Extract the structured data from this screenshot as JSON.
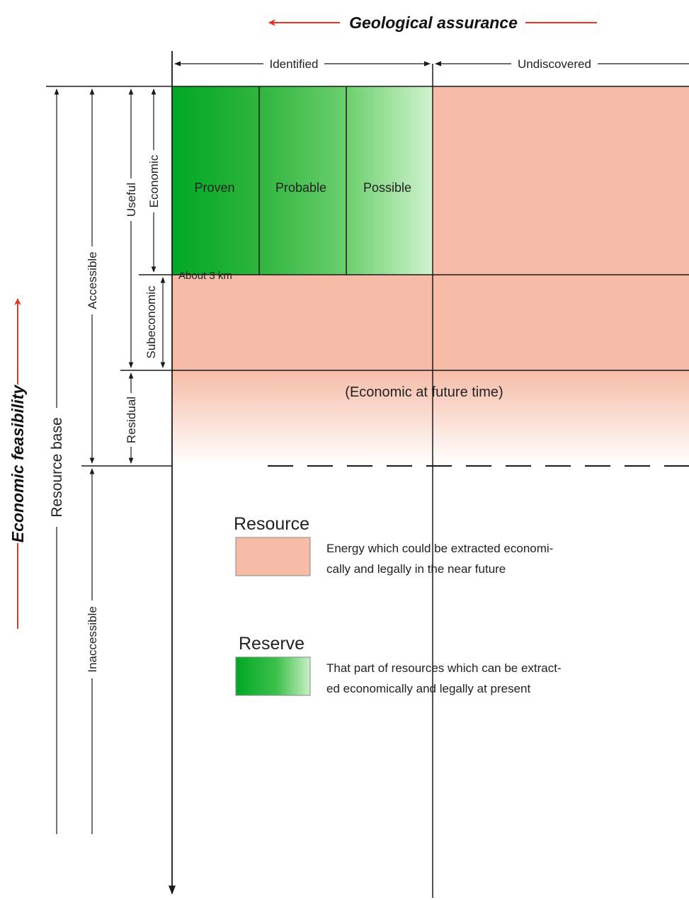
{
  "colors": {
    "resource": "#f6bca8",
    "reserve_dark": "#00a824",
    "reserve_light": "#c9f0c6",
    "arrow_red": "#e8321e",
    "line": "#1a1a1a"
  },
  "header": {
    "geological_assurance": "Geological assurance",
    "identified": "Identified",
    "undiscovered": "Undiscovered"
  },
  "side": {
    "economic_feasibility": "Economic feasibility",
    "resource_base": "Resource base",
    "accessible": "Accessible",
    "inaccessible": "Inaccessible",
    "useful": "Useful",
    "residual": "Residual",
    "economic": "Economic",
    "subeconomic": "Subeconomic"
  },
  "cells": {
    "proven": "Proven",
    "probable": "Probable",
    "possible": "Possible",
    "depth_note": "About 3 km",
    "future_note": "(Economic at future time)"
  },
  "legend": {
    "resource_title": "Resource",
    "resource_desc_1": "Energy which could be extracted economi-",
    "resource_desc_2": "cally and legally in the near future",
    "reserve_title": "Reserve",
    "reserve_desc_1": "That part of resources which can be extract-",
    "reserve_desc_2": "ed economically and legally at present"
  }
}
